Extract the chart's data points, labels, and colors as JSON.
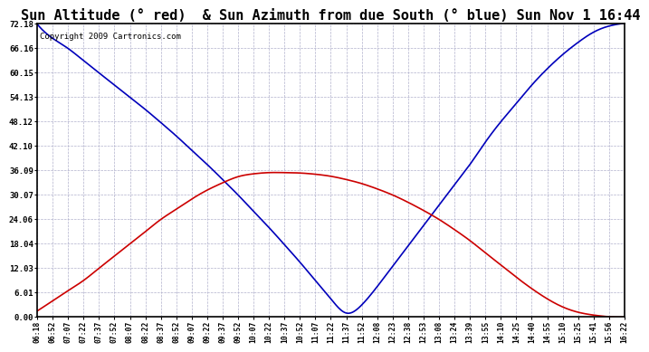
{
  "title": "Sun Altitude (° red)  & Sun Azimuth from due South (° blue) Sun Nov 1 16:44",
  "copyright": "Copyright 2009 Cartronics.com",
  "ymax": 72.18,
  "yticks": [
    0.0,
    6.01,
    12.03,
    18.04,
    24.06,
    30.07,
    36.09,
    42.1,
    48.12,
    54.13,
    60.15,
    66.16,
    72.18
  ],
  "ytick_labels": [
    "0.00",
    "6.01",
    "12.03",
    "18.04",
    "24.06",
    "30.07",
    "36.09",
    "42.10",
    "48.12",
    "54.13",
    "60.15",
    "66.16",
    "72.18"
  ],
  "xtick_labels": [
    "06:18",
    "06:52",
    "07:07",
    "07:22",
    "07:37",
    "07:52",
    "08:07",
    "08:22",
    "08:37",
    "08:52",
    "09:07",
    "09:22",
    "09:37",
    "09:52",
    "10:07",
    "10:22",
    "10:37",
    "10:52",
    "11:07",
    "11:22",
    "11:37",
    "11:52",
    "12:08",
    "12:23",
    "12:38",
    "12:53",
    "13:08",
    "13:24",
    "13:39",
    "13:55",
    "14:10",
    "14:25",
    "14:40",
    "14:55",
    "15:10",
    "15:25",
    "15:41",
    "15:56",
    "16:22"
  ],
  "blue_color": "#0000bb",
  "red_color": "#cc0000",
  "grid_color": "#b0b0cc",
  "background_color": "#ffffff",
  "title_fontsize": 11,
  "copyright_fontsize": 6.5,
  "blue_y": [
    72.0,
    68.5,
    66.0,
    63.0,
    60.0,
    57.0,
    54.0,
    51.0,
    47.8,
    44.5,
    41.0,
    37.5,
    33.8,
    30.0,
    26.0,
    22.0,
    17.8,
    13.5,
    9.0,
    4.5,
    1.0,
    3.0,
    7.5,
    12.5,
    17.5,
    22.5,
    27.5,
    32.5,
    37.5,
    43.0,
    48.0,
    52.5,
    57.0,
    61.0,
    64.5,
    67.5,
    70.0,
    71.5,
    72.18
  ],
  "red_y": [
    1.5,
    4.0,
    6.5,
    9.0,
    12.0,
    15.0,
    18.0,
    21.0,
    24.0,
    26.5,
    29.0,
    31.2,
    33.0,
    34.5,
    35.2,
    35.5,
    35.5,
    35.4,
    35.1,
    34.6,
    33.8,
    32.8,
    31.5,
    30.0,
    28.2,
    26.2,
    24.0,
    21.5,
    18.8,
    15.8,
    12.8,
    9.8,
    7.0,
    4.5,
    2.5,
    1.2,
    0.5,
    0.1,
    0.0
  ]
}
